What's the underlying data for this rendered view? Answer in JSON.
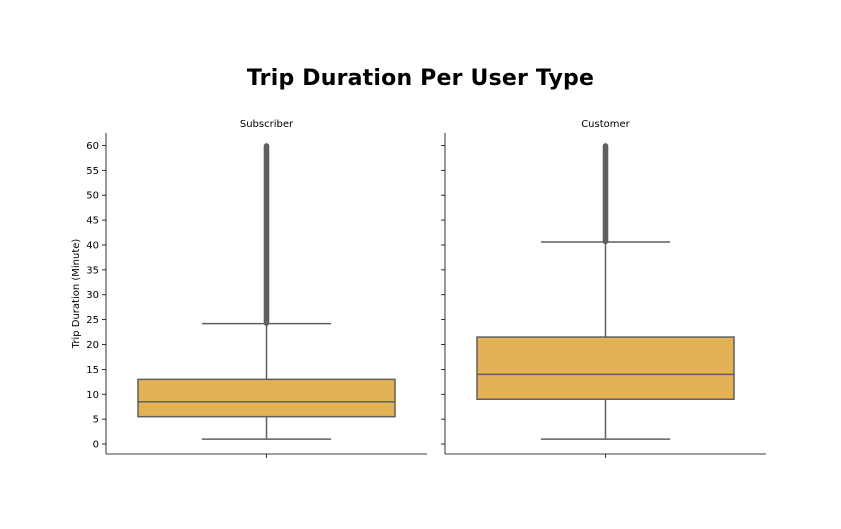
{
  "chart_data": {
    "type": "box",
    "title": "Trip Duration Per User Type",
    "ylabel": "Trip Duration (Minute)",
    "ylim": [
      -2,
      62.5
    ],
    "yticks": [
      0,
      5,
      10,
      15,
      20,
      25,
      30,
      35,
      40,
      45,
      50,
      55,
      60
    ],
    "colors": {
      "box_fill": "#e2b255",
      "box_stroke": "#5f5f5f",
      "axis": "#000000"
    },
    "panels": [
      {
        "title": "Subscriber",
        "whisker_low": 1,
        "q1": 5.5,
        "median": 8.5,
        "q3": 13,
        "whisker_high": 24.2,
        "outliers_from": 24.2,
        "outliers_to": 60
      },
      {
        "title": "Customer",
        "whisker_low": 1,
        "q1": 9,
        "median": 14,
        "q3": 21.5,
        "whisker_high": 40.6,
        "outliers_from": 40.6,
        "outliers_to": 60
      }
    ]
  }
}
